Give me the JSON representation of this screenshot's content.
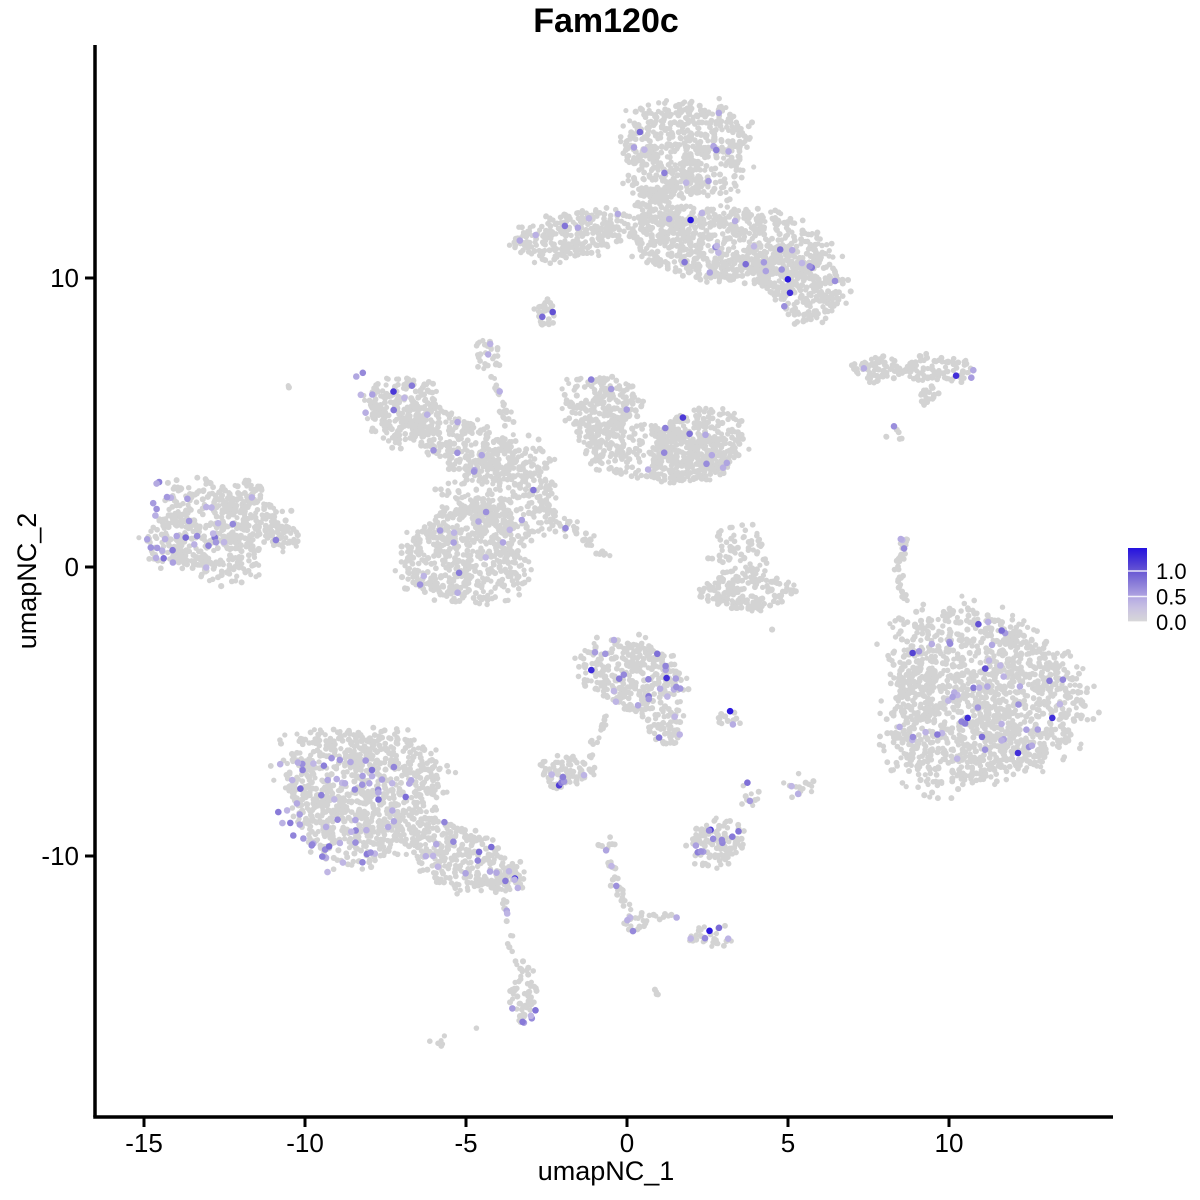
{
  "chart_data": {
    "type": "scatter",
    "title": "Fam120c",
    "xlabel": "umapNC_1",
    "ylabel": "umapNC_2",
    "x_ticks": [
      -15,
      -10,
      -5,
      0,
      5,
      10
    ],
    "y_ticks": [
      10,
      0,
      -10
    ],
    "x_range": [
      -16.5,
      15.1
    ],
    "y_range": [
      -19.0,
      18.1
    ],
    "grid": false,
    "point_color_zero": "#D3D3D3",
    "legend": {
      "position": "right",
      "labels": [
        "1.0",
        "0.5",
        "0.0"
      ],
      "tick_values": [
        1.0,
        0.5,
        0.0
      ],
      "vmax": 1.45,
      "gradient_stops": [
        {
          "t": 0.0,
          "color": "#D8D8D8"
        },
        {
          "t": 0.25,
          "color": "#C3BAE5"
        },
        {
          "t": 0.5,
          "color": "#8F82D9"
        },
        {
          "t": 0.75,
          "color": "#5A48D2"
        },
        {
          "t": 1.0,
          "color": "#2512E0"
        }
      ]
    },
    "clusters": [
      {
        "name": "top-island",
        "components": [
          {
            "shape": "blob",
            "center": [
              1.8,
              14.43
            ],
            "radius": [
              2.02,
              1.66
            ],
            "rot": 0,
            "n": 600,
            "n_expr": 10
          },
          {
            "shape": "blob",
            "center": [
              1.02,
              12.35
            ],
            "radius": [
              0.78,
              0.87
            ],
            "rot": 0,
            "n": 130,
            "n_expr": 1
          },
          {
            "shape": "blob",
            "center": [
              -1.61,
              11.49
            ],
            "radius": [
              1.8,
              0.87
            ],
            "rot": -12,
            "n": 290,
            "n_expr": 6
          },
          {
            "shape": "blob",
            "center": [
              3.2,
              11.14
            ],
            "radius": [
              2.8,
              1.38
            ],
            "rot": 6,
            "n": 700,
            "n_expr": 14,
            "n_dark": 1
          },
          {
            "shape": "blob",
            "center": [
              5.37,
              9.76
            ],
            "radius": [
              1.49,
              1.04
            ],
            "rot": 25,
            "n": 280,
            "n_expr": 8,
            "n_dark": 2
          }
        ]
      },
      {
        "name": "islet-below-top",
        "components": [
          {
            "shape": "blob",
            "center": [
              -2.52,
              8.72
            ],
            "radius": [
              0.34,
              0.45
            ],
            "rot": 0,
            "n": 35,
            "n_expr": 2,
            "n_dark": 1
          }
        ]
      },
      {
        "name": "right-ribbon",
        "components": [
          {
            "shape": "blob",
            "center": [
              7.8,
              6.82
            ],
            "radius": [
              0.84,
              0.42
            ],
            "rot": 0,
            "n": 70,
            "n_expr": 1
          },
          {
            "shape": "blob",
            "center": [
              9.66,
              6.89
            ],
            "radius": [
              0.99,
              0.48
            ],
            "rot": 0,
            "n": 95,
            "n_expr": 3,
            "n_dark": 1,
            "expr_bias": [
              0.55,
              0.05
            ]
          },
          {
            "shape": "blob",
            "center": [
              9.35,
              5.95
            ],
            "radius": [
              0.37,
              0.28
            ],
            "rot": -35,
            "n": 22,
            "n_expr": 0
          },
          {
            "shape": "blob",
            "center": [
              8.26,
              4.6
            ],
            "radius": [
              0.28,
              0.31
            ],
            "rot": 0,
            "n": 6,
            "n_expr": 1
          }
        ]
      },
      {
        "name": "central-complex",
        "components": [
          {
            "shape": "blob",
            "center": [
              -7.05,
              5.5
            ],
            "radius": [
              1.18,
              1.11
            ],
            "rot": 0,
            "n": 240,
            "n_expr": 9,
            "n_dark": 1,
            "expr_bias": [
              -0.45,
              0.5
            ]
          },
          {
            "shape": "blob",
            "center": [
              -5.03,
              4.22
            ],
            "radius": [
              1.71,
              0.97
            ],
            "rot": 25,
            "n": 300,
            "n_expr": 6
          },
          {
            "shape": "blob",
            "center": [
              -4.32,
              7.34
            ],
            "radius": [
              0.4,
              0.55
            ],
            "rot": 0,
            "n": 30,
            "n_expr": 2
          },
          {
            "shape": "chain",
            "pts": [
              [
                -4.1,
                6.47
              ],
              [
                -3.63,
                4.91
              ]
            ],
            "w": 0.22,
            "n": 25,
            "n_expr": 1
          },
          {
            "shape": "blob",
            "center": [
              -3.79,
              2.66
            ],
            "radius": [
              1.71,
              1.56
            ],
            "rot": 0,
            "n": 350,
            "n_expr": 4
          },
          {
            "shape": "blob",
            "center": [
              -0.84,
              5.61
            ],
            "radius": [
              1.18,
              1.04
            ],
            "rot": 0,
            "n": 220,
            "n_expr": 3
          },
          {
            "shape": "blob",
            "center": [
              0.87,
              4.05
            ],
            "radius": [
              2.33,
              0.97
            ],
            "rot": 5,
            "n": 400,
            "n_expr": 4
          },
          {
            "shape": "blob",
            "center": [
              2.27,
              4.22
            ],
            "radius": [
              1.4,
              1.21
            ],
            "rot": 0,
            "n": 300,
            "n_expr": 6,
            "n_dark": 1
          },
          {
            "shape": "blob",
            "center": [
              -5.03,
              0.42
            ],
            "radius": [
              1.86,
              1.66
            ],
            "rot": 0,
            "n": 550,
            "n_expr": 11
          },
          {
            "shape": "chain",
            "pts": [
              [
                -2.55,
                1.97
              ],
              [
                -0.68,
                0.48
              ]
            ],
            "w": 0.28,
            "n": 45,
            "n_expr": 1
          }
        ]
      },
      {
        "name": "left-island",
        "components": [
          {
            "shape": "blob",
            "center": [
              -12.86,
              1.21
            ],
            "radius": [
              1.93,
              1.56
            ],
            "rot": 0,
            "n": 540,
            "n_expr": 32,
            "expr_bias": [
              -0.5,
              0.08
            ]
          },
          {
            "shape": "blob",
            "center": [
              -10.71,
              1.04
            ],
            "radius": [
              0.56,
              0.42
            ],
            "rot": 0,
            "n": 45,
            "n_expr": 1
          },
          {
            "shape": "blob",
            "center": [
              -11.86,
              2.49
            ],
            "radius": [
              0.68,
              0.42
            ],
            "rot": -35,
            "n": 55,
            "n_expr": 1
          }
        ]
      },
      {
        "name": "mid-right-jelly",
        "components": [
          {
            "shape": "blob",
            "center": [
              3.45,
              0.35
            ],
            "radius": [
              0.9,
              1.06
            ],
            "rot": 0,
            "n": 80,
            "n_expr": 0
          },
          {
            "shape": "blob",
            "center": [
              3.66,
              -0.87
            ],
            "radius": [
              1.4,
              0.62
            ],
            "rot": 0,
            "n": 160,
            "n_expr": 0
          }
        ]
      },
      {
        "name": "right-sliver",
        "components": [
          {
            "shape": "chain",
            "pts": [
              [
                8.63,
                1.0
              ],
              [
                8.39,
                -0.03
              ],
              [
                8.57,
                -1.14
              ]
            ],
            "w": 0.16,
            "n": 40,
            "n_expr": 3,
            "expr_t": [
              0.0,
              0.3
            ]
          },
          {
            "shape": "chain",
            "pts": [
              [
                8.51,
                -1.66
              ],
              [
                8.45,
                -2.94
              ]
            ],
            "w": 0.1,
            "n": 5,
            "n_expr": 0
          }
        ]
      },
      {
        "name": "right-big-island",
        "components": [
          {
            "shape": "blob",
            "center": [
              10.96,
              -4.6
            ],
            "radius": [
              2.95,
              2.94
            ],
            "rot": 0,
            "n": 1500,
            "n_expr": 48,
            "n_dark": 6
          },
          {
            "shape": "blob",
            "center": [
              8.94,
              -2.7
            ],
            "radius": [
              1.2,
              1.1
            ],
            "rot": 0,
            "n": 22,
            "n_expr": 0
          }
        ]
      },
      {
        "name": "center-south-island",
        "components": [
          {
            "shape": "blob",
            "center": [
              0.19,
              -3.74
            ],
            "radius": [
              1.49,
              1.31
            ],
            "rot": 0,
            "n": 350,
            "n_expr": 22,
            "n_dark": 2
          },
          {
            "shape": "blob",
            "center": [
              1.27,
              -5.54
            ],
            "radius": [
              0.47,
              0.69
            ],
            "rot": 0,
            "n": 60,
            "n_expr": 3
          },
          {
            "shape": "chain",
            "pts": [
              [
                -0.62,
                -5.02
              ],
              [
                -1.18,
                -6.68
              ]
            ],
            "w": 0.2,
            "n": 16,
            "n_expr": 0
          },
          {
            "shape": "blob",
            "center": [
              -1.93,
              -7.09
            ],
            "radius": [
              0.78,
              0.55
            ],
            "rot": 0,
            "n": 80,
            "n_expr": 6,
            "n_dark": 1
          }
        ]
      },
      {
        "name": "tiny-duo",
        "components": [
          {
            "shape": "blob",
            "center": [
              3.2,
              -5.26
            ],
            "radius": [
              0.43,
              0.28
            ],
            "rot": 0,
            "n": 12,
            "n_expr": 2,
            "n_dark": 1
          }
        ]
      },
      {
        "name": "southwest-island",
        "components": [
          {
            "shape": "blob",
            "center": [
              -8.29,
              -7.72
            ],
            "radius": [
              2.33,
              2.25
            ],
            "rot": 0,
            "n": 930,
            "n_expr": 66,
            "expr_bias": [
              -0.28,
              -0.3
            ]
          },
          {
            "shape": "blob",
            "center": [
              -5.25,
              -10.0
            ],
            "radius": [
              1.71,
              1.04
            ],
            "rot": 22,
            "n": 320,
            "n_expr": 12
          },
          {
            "shape": "blob",
            "center": [
              -3.76,
              -10.8
            ],
            "radius": [
              0.56,
              0.48
            ],
            "rot": 0,
            "n": 50,
            "n_expr": 5,
            "n_dark": 1
          },
          {
            "shape": "chain",
            "pts": [
              [
                -3.85,
                -11.56
              ],
              [
                -3.57,
                -12.8
              ]
            ],
            "w": 0.13,
            "n": 8,
            "n_expr": 2
          }
        ]
      },
      {
        "name": "small-pair",
        "components": [
          {
            "shape": "blob",
            "center": [
              3.79,
              -7.82
            ],
            "radius": [
              0.37,
              0.43
            ],
            "rot": 0,
            "n": 10,
            "n_expr": 2
          },
          {
            "shape": "blob",
            "center": [
              5.4,
              -7.58
            ],
            "radius": [
              0.5,
              0.5
            ],
            "rot": 0,
            "n": 14,
            "n_expr": 2
          }
        ]
      },
      {
        "name": "south-blob",
        "components": [
          {
            "shape": "blob",
            "center": [
              2.76,
              -9.55
            ],
            "radius": [
              0.87,
              0.76
            ],
            "rot": 0,
            "n": 120,
            "n_expr": 11,
            "n_dark": 1
          }
        ]
      },
      {
        "name": "south-chain",
        "components": [
          {
            "shape": "blob",
            "center": [
              -0.62,
              -9.62
            ],
            "radius": [
              0.31,
              0.37
            ],
            "rot": 0,
            "n": 8,
            "n_expr": 1
          },
          {
            "shape": "chain",
            "pts": [
              [
                -0.5,
                -10.24
              ],
              [
                -0.16,
                -11.45
              ],
              [
                0.12,
                -12.14
              ]
            ],
            "w": 0.2,
            "n": 26,
            "n_expr": 2
          },
          {
            "shape": "blob",
            "center": [
              0.28,
              -12.25
            ],
            "radius": [
              0.43,
              0.37
            ],
            "rot": 0,
            "n": 18,
            "n_expr": 3
          },
          {
            "shape": "chain",
            "pts": [
              [
                0.56,
                -12.04
              ],
              [
                1.46,
                -12.11
              ]
            ],
            "w": 0.13,
            "n": 8,
            "n_expr": 1
          },
          {
            "shape": "blob",
            "center": [
              2.64,
              -12.77
            ],
            "radius": [
              0.68,
              0.43
            ],
            "rot": 0,
            "n": 30,
            "n_expr": 5,
            "n_dark": 1
          }
        ]
      },
      {
        "name": "south-tail",
        "components": [
          {
            "shape": "blob",
            "center": [
              -3.2,
              -14.64
            ],
            "radius": [
              0.43,
              1.04
            ],
            "rot": 0,
            "n": 55,
            "n_expr": 6,
            "expr_bias": [
              0,
              -0.5
            ]
          },
          {
            "shape": "chain",
            "pts": [
              [
                -3.7,
                -13.01
              ],
              [
                -3.42,
                -13.84
              ]
            ],
            "w": 0.1,
            "n": 5,
            "n_expr": 0
          }
        ]
      },
      {
        "name": "specks",
        "components": [
          {
            "shape": "blob",
            "center": [
              1.02,
              -14.64
            ],
            "radius": [
              0.19,
              0.19
            ],
            "rot": 0,
            "n": 4,
            "n_expr": 0
          },
          {
            "shape": "blob",
            "center": [
              -5.87,
              -16.44
            ],
            "radius": [
              0.37,
              0.22
            ],
            "rot": -15,
            "n": 7,
            "n_expr": 0
          },
          {
            "shape": "blob",
            "center": [
              -10.56,
              6.23
            ],
            "radius": [
              0.12,
              0.12
            ],
            "rot": 0,
            "n": 2,
            "n_expr": 0
          },
          {
            "shape": "blob",
            "center": [
              4.53,
              -2.18
            ],
            "radius": [
              0.05,
              0.05
            ],
            "rot": 0,
            "n": 1,
            "n_expr": 0
          },
          {
            "shape": "blob",
            "center": [
              -4.63,
              -15.95
            ],
            "radius": [
              0.05,
              0.05
            ],
            "rot": 0,
            "n": 1,
            "n_expr": 0
          }
        ]
      }
    ]
  }
}
